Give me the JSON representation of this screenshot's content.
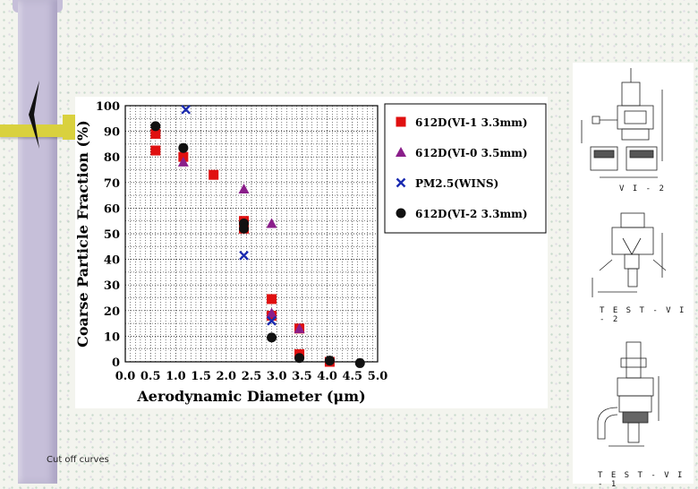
{
  "caption": "Cut off curves",
  "schematics": [
    {
      "label": "V I - 2"
    },
    {
      "label": "T E S T - V I - 2"
    },
    {
      "label": "T E S T - V I - 1"
    }
  ],
  "chart_data": {
    "type": "scatter",
    "title": "",
    "xlabel": "Aerodynamic Diameter (μm)",
    "ylabel": "Coarse Particle Fraction (%)",
    "xlim": [
      0,
      5.0
    ],
    "ylim": [
      0,
      100
    ],
    "xticks": [
      "0.0",
      "0.5",
      "1.0",
      "1.5",
      "2.0",
      "2.5",
      "3.0",
      "3.5",
      "4.0",
      "4.5",
      "5.0"
    ],
    "yticks": [
      "0",
      "10",
      "20",
      "30",
      "40",
      "50",
      "60",
      "70",
      "80",
      "90",
      "100"
    ],
    "grid": true,
    "legend_position": "right",
    "series": [
      {
        "name": "612D(VI-1 3.3mm)",
        "marker": "square",
        "color": "#e01010",
        "points": [
          [
            0.6,
            89
          ],
          [
            0.6,
            82.5
          ],
          [
            1.15,
            80
          ],
          [
            1.75,
            73
          ],
          [
            2.35,
            55
          ],
          [
            2.35,
            52
          ],
          [
            2.9,
            24.5
          ],
          [
            2.9,
            18
          ],
          [
            3.45,
            13
          ],
          [
            3.45,
            3
          ],
          [
            4.05,
            0
          ]
        ]
      },
      {
        "name": "612D(VI-0 3.5mm)",
        "marker": "triangle",
        "color": "#8a1e8a",
        "points": [
          [
            1.15,
            78
          ],
          [
            2.35,
            67.5
          ],
          [
            2.9,
            54
          ],
          [
            2.9,
            19
          ],
          [
            3.45,
            13
          ]
        ]
      },
      {
        "name": "PM2.5(WINS)",
        "marker": "x",
        "color": "#1a2ab0",
        "points": [
          [
            1.2,
            98.5
          ],
          [
            2.35,
            41.5
          ],
          [
            2.9,
            16
          ]
        ]
      },
      {
        "name": "612D(VI-2 3.3mm)",
        "marker": "circle",
        "color": "#111111",
        "points": [
          [
            0.6,
            92
          ],
          [
            1.15,
            83.5
          ],
          [
            2.35,
            54
          ],
          [
            2.35,
            52
          ],
          [
            2.9,
            9.5
          ],
          [
            3.45,
            1.5
          ],
          [
            4.05,
            0.5
          ],
          [
            4.65,
            -0.5
          ]
        ]
      }
    ]
  }
}
